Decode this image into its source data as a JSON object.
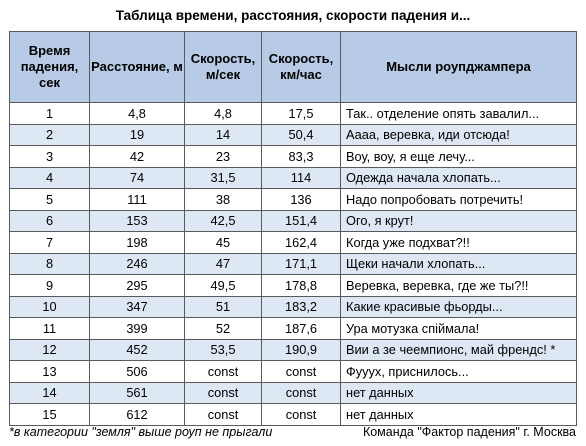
{
  "title": "Таблица времени, расстояния, скорости падения и...",
  "table": {
    "headers": [
      "Время падения, сек",
      "Расстояние, м",
      "Скорость, м/сек",
      "Скорость, км/час",
      "Мысли роупджампера"
    ],
    "rows": [
      [
        "1",
        "4,8",
        "4,8",
        "17,5",
        "Так.. отделение опять завалил..."
      ],
      [
        "2",
        "19",
        "14",
        "50,4",
        "Аааа, веревка, иди отсюда!"
      ],
      [
        "3",
        "42",
        "23",
        "83,3",
        "Воу, воу, я еще лечу..."
      ],
      [
        "4",
        "74",
        "31,5",
        "114",
        "Одежда начала хлопать..."
      ],
      [
        "5",
        "111",
        "38",
        "136",
        "Надо попробовать потречить!"
      ],
      [
        "6",
        "153",
        "42,5",
        "151,4",
        "Ого, я крут!"
      ],
      [
        "7",
        "198",
        "45",
        "162,4",
        "Когда уже подхват?!!"
      ],
      [
        "8",
        "246",
        "47",
        "171,1",
        "Щеки начали хлопать..."
      ],
      [
        "9",
        "295",
        "49,5",
        "178,8",
        "Веревка, веревка, где же ты?!!"
      ],
      [
        "10",
        "347",
        "51",
        "183,2",
        "Какие красивые фьорды..."
      ],
      [
        "11",
        "399",
        "52",
        "187,6",
        "Ура мотузка спіймала!"
      ],
      [
        "12",
        "452",
        "53,5",
        "190,9",
        "Вии а зе чеемпионс, май френдс! *"
      ],
      [
        "13",
        "506",
        "const",
        "const",
        "Фууух, приснилось..."
      ],
      [
        "14",
        "561",
        "const",
        "const",
        "нет данных"
      ],
      [
        "15",
        "612",
        "const",
        "const",
        "нет данных"
      ]
    ]
  },
  "footnote_left": "*в категории \"земля\" выше роуп не прыгали",
  "footnote_right": "Команда \"Фактор падения\" г. Москва"
}
